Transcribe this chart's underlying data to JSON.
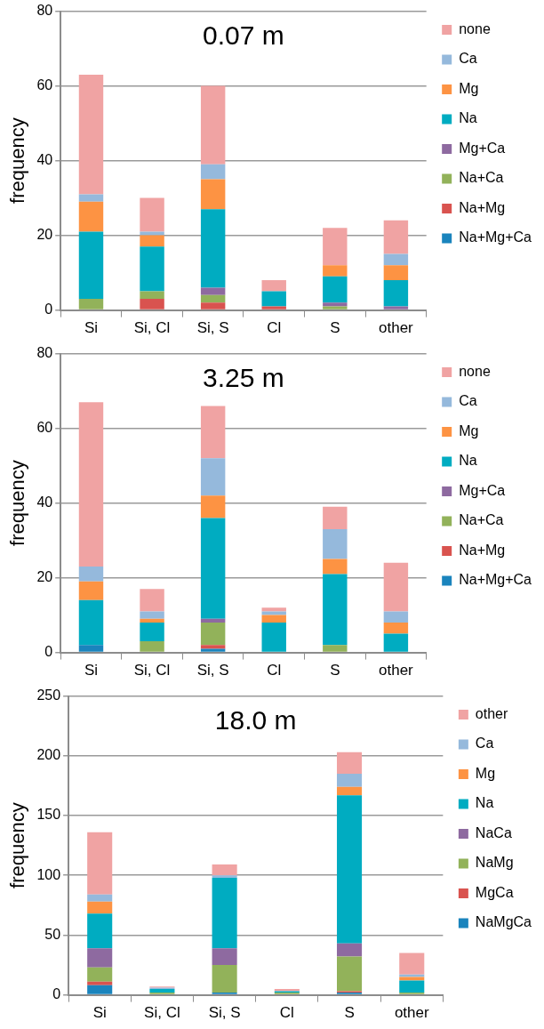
{
  "chart_data": [
    {
      "type": "bar",
      "stacked": true,
      "title": "0.07 m",
      "ylabel": "frequency",
      "categories": [
        "Si",
        "Si, Cl",
        "Si, S",
        "Cl",
        "S",
        "other"
      ],
      "ylim": [
        0,
        80
      ],
      "yticks": [
        0,
        20,
        40,
        60,
        80
      ],
      "grid": "y",
      "legend": "right",
      "series": [
        {
          "name": "Na+Mg+Ca",
          "color": "#1a84bd",
          "values": [
            0,
            0,
            0,
            0,
            0,
            0
          ]
        },
        {
          "name": "Na+Mg",
          "color": "#d9534f",
          "values": [
            0,
            3,
            2,
            1,
            0,
            0
          ]
        },
        {
          "name": "Na+Ca",
          "color": "#92b25a",
          "values": [
            3,
            2,
            2,
            0,
            1,
            0
          ]
        },
        {
          "name": "Mg+Ca",
          "color": "#8e6aa0",
          "values": [
            0,
            0,
            2,
            0,
            1,
            1
          ]
        },
        {
          "name": "Na",
          "color": "#00acc1",
          "values": [
            18,
            12,
            21,
            4,
            7,
            7
          ]
        },
        {
          "name": "Mg",
          "color": "#fd9343",
          "values": [
            8,
            3,
            8,
            0,
            3,
            4
          ]
        },
        {
          "name": "Ca",
          "color": "#95b9dc",
          "values": [
            2,
            1,
            4,
            0,
            0,
            3
          ]
        },
        {
          "name": "none",
          "color": "#f0a3a3",
          "values": [
            32,
            9,
            21,
            3,
            10,
            9
          ]
        }
      ]
    },
    {
      "type": "bar",
      "stacked": true,
      "title": "3.25 m",
      "ylabel": "frequency",
      "categories": [
        "Si",
        "Si, Cl",
        "Si, S",
        "Cl",
        "S",
        "other"
      ],
      "ylim": [
        0,
        80
      ],
      "yticks": [
        0,
        20,
        40,
        60,
        80
      ],
      "grid": "y",
      "legend": "right",
      "series": [
        {
          "name": "Na+Mg+Ca",
          "color": "#1a84bd",
          "values": [
            2,
            0,
            1,
            0,
            0,
            0
          ]
        },
        {
          "name": "Na+Mg",
          "color": "#d9534f",
          "values": [
            0,
            0,
            1,
            0,
            0,
            0
          ]
        },
        {
          "name": "Na+Ca",
          "color": "#92b25a",
          "values": [
            0,
            3,
            6,
            0,
            2,
            0
          ]
        },
        {
          "name": "Mg+Ca",
          "color": "#8e6aa0",
          "values": [
            0,
            0,
            1,
            0,
            0,
            0
          ]
        },
        {
          "name": "Na",
          "color": "#00acc1",
          "values": [
            12,
            5,
            27,
            8,
            19,
            5
          ]
        },
        {
          "name": "Mg",
          "color": "#fd9343",
          "values": [
            5,
            1,
            6,
            2,
            4,
            3
          ]
        },
        {
          "name": "Ca",
          "color": "#95b9dc",
          "values": [
            4,
            2,
            10,
            1,
            8,
            3
          ]
        },
        {
          "name": "none",
          "color": "#f0a3a3",
          "values": [
            44,
            6,
            14,
            1,
            6,
            13
          ]
        }
      ]
    },
    {
      "type": "bar",
      "stacked": true,
      "title": "18.0 m",
      "ylabel": "frequency",
      "categories": [
        "Si",
        "Si, Cl",
        "Si, S",
        "Cl",
        "S",
        "other"
      ],
      "ylim": [
        0,
        250
      ],
      "yticks": [
        0,
        50,
        100,
        150,
        200,
        250
      ],
      "grid": "y",
      "legend": "right",
      "series": [
        {
          "name": "NaMgCa",
          "color": "#1a84bd",
          "values": [
            8,
            0,
            2,
            0,
            2,
            0
          ]
        },
        {
          "name": "MgCa",
          "color": "#d9534f",
          "values": [
            3,
            0,
            0,
            0,
            1,
            0
          ]
        },
        {
          "name": "NaMg",
          "color": "#92b25a",
          "values": [
            12,
            2,
            23,
            2,
            29,
            2
          ]
        },
        {
          "name": "NaCa",
          "color": "#8e6aa0",
          "values": [
            16,
            0,
            14,
            0,
            11,
            0
          ]
        },
        {
          "name": "Na",
          "color": "#00acc1",
          "values": [
            29,
            3,
            59,
            1,
            124,
            10
          ]
        },
        {
          "name": "Mg",
          "color": "#fd9343",
          "values": [
            10,
            0,
            0,
            0,
            7,
            3
          ]
        },
        {
          "name": "Ca",
          "color": "#95b9dc",
          "values": [
            6,
            1,
            2,
            0,
            11,
            2
          ]
        },
        {
          "name": "other",
          "color": "#f0a3a3",
          "values": [
            52,
            1,
            9,
            2,
            18,
            18
          ]
        }
      ]
    }
  ]
}
